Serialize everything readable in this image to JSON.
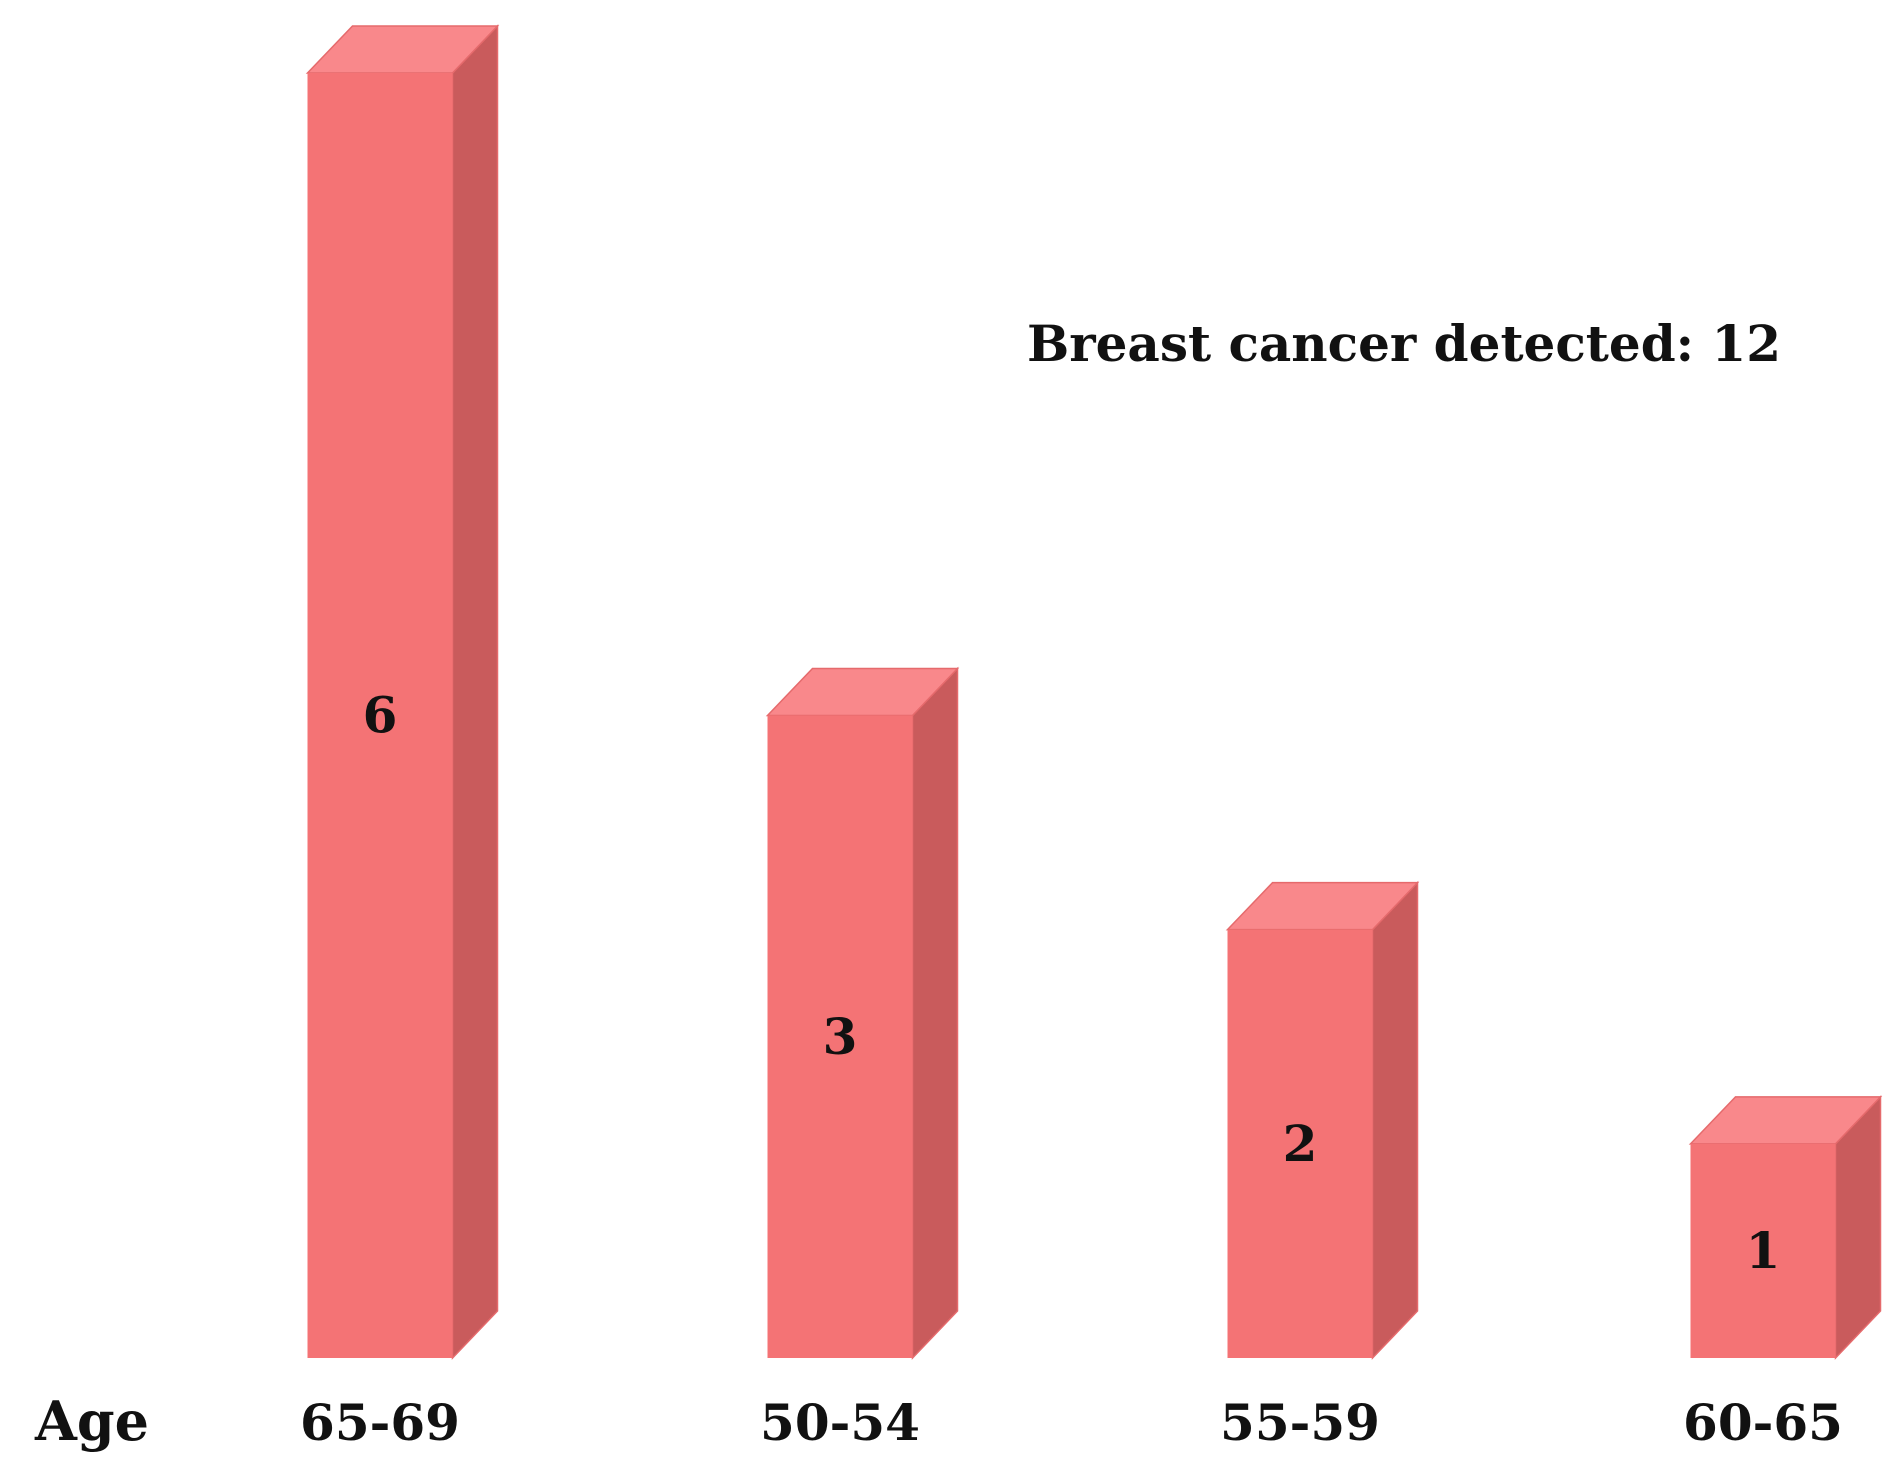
{
  "chart_data": {
    "type": "bar",
    "style": "3d-column",
    "title": "",
    "annotation": "Breast cancer detected: 12",
    "xlabel": "Age",
    "ylabel": "",
    "categories": [
      "65-69",
      "50-54",
      "55-59",
      "60-65"
    ],
    "values": [
      6,
      3,
      2,
      1
    ],
    "data_labels": [
      "6",
      "3",
      "2",
      "1"
    ],
    "ylim": [
      0,
      6
    ],
    "grid": false,
    "legend": "none",
    "colors": {
      "bar_front": "#F47375",
      "bar_top": "#F9888B",
      "bar_side": "#C95B5C",
      "bar_edge": "#E56A6C",
      "text": "#111111"
    }
  }
}
